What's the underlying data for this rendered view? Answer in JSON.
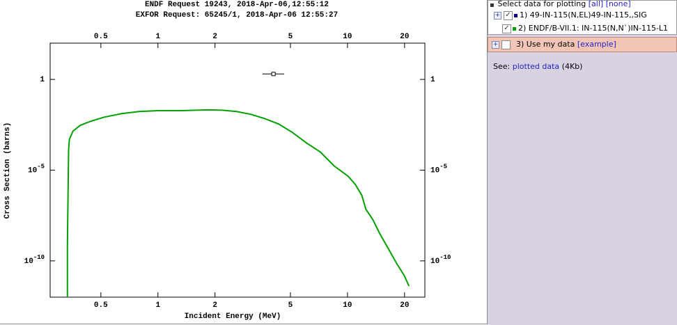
{
  "chart_data": {
    "type": "line",
    "title": "ENDF Request 19243, 2018-Apr-06,12:55:12",
    "subtitle": "EXFOR Request: 65245/1, 2018-Apr-06 12:55:27",
    "x_label": "Incident Energy (MeV)",
    "y_label": "Cross Section (barns)",
    "xscale": "log",
    "yscale": "log",
    "xlim": [
      0.27,
      25.6
    ],
    "ylim": [
      1e-12,
      100
    ],
    "xticks": [
      0.5,
      1,
      2,
      5,
      10,
      20
    ],
    "yticks": [
      1,
      {
        "value": 1e-05,
        "label": "10",
        "exponent": "-5"
      },
      {
        "value": 1e-10,
        "label": "10",
        "exponent": "-10"
      }
    ],
    "series": [
      {
        "name": "1) 49-IN-115(N,EL)49-IN-115,,SIG",
        "color": "#000080",
        "marker": "square",
        "x": [
          4.07
        ],
        "values": [
          2.0
        ],
        "x_low": [
          3.56
        ],
        "x_high": [
          4.63
        ]
      },
      {
        "name": "2) ENDF/B-VII.1: IN-115(N,N`)IN-115-L1",
        "color": "#00a000",
        "x": [
          0.333,
          0.333,
          0.338,
          0.341,
          0.356,
          0.388,
          0.44,
          0.521,
          0.644,
          0.796,
          1,
          1.32,
          1.57,
          1.85,
          2.2,
          2.6,
          3.08,
          3.65,
          4.33,
          5.12,
          6.07,
          7.19,
          8.51,
          10.1,
          11.0,
          11.9,
          12.5,
          13.6,
          14.8,
          16.7,
          18.2,
          19.9,
          21.1
        ],
        "values": [
          1e-12,
          8.3e-10,
          0.00013,
          0.00049,
          0.0014,
          0.0029,
          0.0049,
          0.0084,
          0.013,
          0.017,
          0.019,
          0.019,
          0.02,
          0.021,
          0.02,
          0.017,
          0.012,
          0.007,
          0.0035,
          0.0012,
          0.00032,
          0.0001,
          1.7e-05,
          4.5e-06,
          1.6e-06,
          4.1e-07,
          7e-08,
          1.9e-08,
          3.2e-09,
          3.5e-10,
          7e-11,
          1.6e-11,
          4.1e-12
        ]
      }
    ]
  },
  "panel": {
    "header": "Select data for plotting",
    "all": "[all]",
    "none": "[none]",
    "expand": "+",
    "add_row": {
      "label": "3) Use my data",
      "link": "[example]"
    },
    "see": "See:",
    "link": "plotted data",
    "size": "(4Kb)"
  }
}
